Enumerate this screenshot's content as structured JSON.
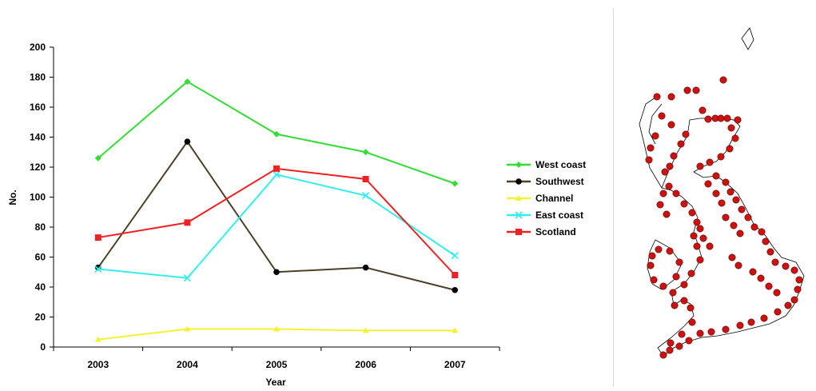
{
  "chart_data": {
    "type": "line",
    "title": "",
    "xlabel": "Year",
    "ylabel": "No.",
    "x": [
      "2003",
      "2004",
      "2005",
      "2006",
      "2007"
    ],
    "ylim": [
      0,
      200
    ],
    "yticks": [
      "0",
      "20",
      "40",
      "60",
      "80",
      "100",
      "120",
      "140",
      "160",
      "180",
      "200"
    ],
    "grid": false,
    "legend_position": "right",
    "series": [
      {
        "name": "West coast",
        "color": "#33dd33",
        "marker": "diamond",
        "values": [
          126,
          177,
          142,
          130,
          109
        ]
      },
      {
        "name": "Southwest",
        "color": "#4d4026",
        "marker": "circle",
        "values": [
          53,
          137,
          50,
          53,
          38
        ]
      },
      {
        "name": "Channel",
        "color": "#f2f233",
        "marker": "triangle",
        "values": [
          5,
          12,
          12,
          11,
          11
        ]
      },
      {
        "name": "East coast",
        "color": "#33eeee",
        "marker": "x",
        "values": [
          52,
          46,
          115,
          101,
          61
        ]
      },
      {
        "name": "Scotland",
        "color": "#ee2222",
        "marker": "square",
        "values": [
          73,
          83,
          119,
          112,
          48
        ]
      }
    ]
  },
  "map": {
    "icon": "great-britain-map",
    "coastline_color": "#000000",
    "site_marker_color": "#cc1111"
  }
}
